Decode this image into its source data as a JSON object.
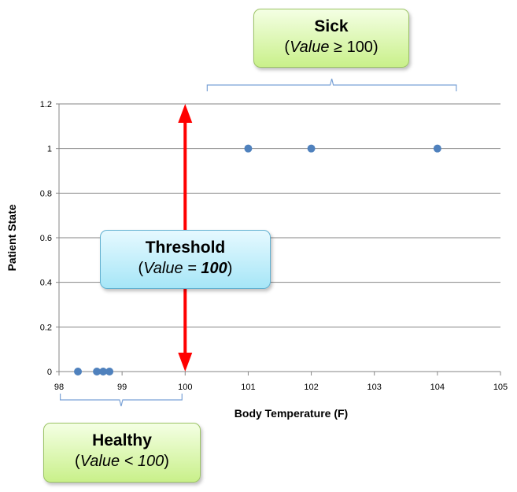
{
  "chart_data": {
    "type": "scatter",
    "xlabel": "Body Temperature (F)",
    "ylabel": "Patient State",
    "xlim": [
      98,
      105
    ],
    "ylim": [
      0,
      1.2
    ],
    "x_ticks": [
      "98",
      "99",
      "100",
      "101",
      "102",
      "103",
      "104",
      "105"
    ],
    "y_ticks": [
      "0",
      "0.2",
      "0.4",
      "0.6",
      "0.8",
      "1",
      "1.2"
    ],
    "grid": "horizontal",
    "series": [
      {
        "color": "#4f81bd",
        "points": [
          {
            "x": 98.3,
            "y": 0
          },
          {
            "x": 98.6,
            "y": 0
          },
          {
            "x": 98.7,
            "y": 0
          },
          {
            "x": 98.8,
            "y": 0
          },
          {
            "x": 101,
            "y": 1
          },
          {
            "x": 102,
            "y": 1
          },
          {
            "x": 104,
            "y": 1
          }
        ]
      }
    ],
    "threshold": {
      "x": 100,
      "color": "#ff0000"
    }
  },
  "annotations": {
    "sick": {
      "title": "Sick",
      "expr_italic": "Value ",
      "expr_op": "≥ 100",
      "expr_close": ")"
    },
    "threshold": {
      "title": "Threshold",
      "expr_italic": "Value = ",
      "expr_bold": "100",
      "expr_close": ")"
    },
    "healthy": {
      "title": "Healthy",
      "expr_italic": "Value < 100",
      "expr_close": ")"
    }
  }
}
